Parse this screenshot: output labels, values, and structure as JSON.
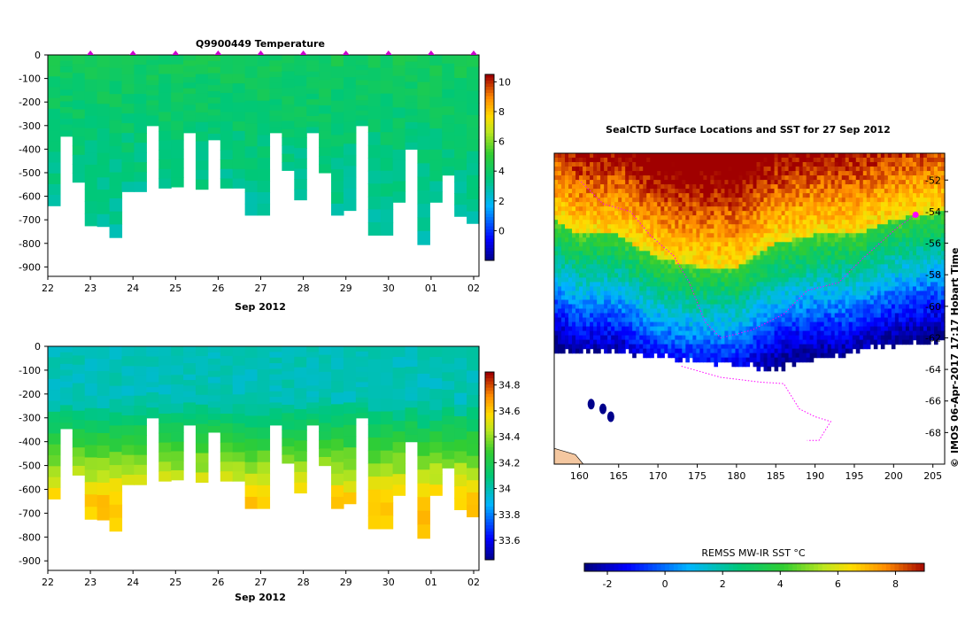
{
  "chart_data": [
    {
      "type": "heatmap",
      "title": "Q9900449  Temperature",
      "xlabel": "Sep 2012",
      "x_tick_labels": [
        "22",
        "23",
        "24",
        "25",
        "26",
        "27",
        "28",
        "29",
        "30",
        "01",
        "02"
      ],
      "ylabel": "",
      "y_tick_labels": [
        "0",
        "-100",
        "-200",
        "-300",
        "-400",
        "-500",
        "-600",
        "-700",
        "-800",
        "-900"
      ],
      "ylim": [
        -940,
        0
      ],
      "colorbar": {
        "ticks": [
          "10",
          "8",
          "6",
          "4",
          "2",
          "0"
        ],
        "range": [
          -2,
          10.5
        ]
      },
      "profile_max_depths_m": [
        -640,
        -345,
        -540,
        -725,
        -728,
        -775,
        -580,
        -580,
        -300,
        -565,
        -560,
        -330,
        -570,
        -360,
        -565,
        -565,
        -680,
        -680,
        -330,
        -490,
        -615,
        -330,
        -500,
        -680,
        -660,
        -300,
        -765,
        -765,
        -625,
        -400,
        -805,
        -625,
        -510,
        -685,
        -715
      ],
      "surface_value": 4.3,
      "deep_value": 3.1,
      "profile_markers_day": [
        23.0,
        24.0,
        25.0,
        26.0,
        27.0,
        28.0,
        29.0,
        30.0,
        31.0,
        32.0
      ]
    },
    {
      "type": "heatmap",
      "title": "",
      "xlabel": "Sep 2012",
      "x_tick_labels": [
        "22",
        "23",
        "24",
        "25",
        "26",
        "27",
        "28",
        "29",
        "30",
        "01",
        "02"
      ],
      "y_tick_labels": [
        "0",
        "-100",
        "-200",
        "-300",
        "-400",
        "-500",
        "-600",
        "-700",
        "-800",
        "-900"
      ],
      "ylim": [
        -940,
        0
      ],
      "colorbar": {
        "ticks": [
          "34.8",
          "34.6",
          "34.4",
          "34.2",
          "34",
          "33.8",
          "33.6"
        ],
        "range": [
          33.45,
          34.9
        ]
      },
      "profile_max_depths_m": [
        -640,
        -345,
        -540,
        -725,
        -728,
        -775,
        -580,
        -580,
        -300,
        -565,
        -560,
        -330,
        -570,
        -360,
        -565,
        -565,
        -680,
        -680,
        -330,
        -490,
        -615,
        -330,
        -500,
        -680,
        -660,
        -300,
        -765,
        -765,
        -625,
        -400,
        -805,
        -625,
        -510,
        -685,
        -715
      ],
      "surface_value": 34.0,
      "deep_value": 34.62
    },
    {
      "type": "heatmap",
      "title": "SealCTD Surface Locations and SST for 27 Sep 2012",
      "xlabel": "",
      "x_tick_labels": [
        "160",
        "165",
        "170",
        "175",
        "180",
        "185",
        "190",
        "195",
        "200",
        "205"
      ],
      "y_tick_labels": [
        "-52",
        "-54",
        "-56",
        "-58",
        "-60",
        "-62",
        "-64",
        "-66",
        "-68"
      ],
      "xlim": [
        156.8,
        206.5
      ],
      "ylim": [
        -70.0,
        -50.3
      ],
      "colorbar": {
        "label": "REMSS MW-IR SST °C",
        "ticks": [
          "-2",
          "0",
          "2",
          "4",
          "6",
          "8"
        ],
        "range": [
          -2.8,
          9.0
        ]
      },
      "sst_front_lat_by_lon": [
        [
          156.8,
          -54.5
        ],
        [
          160,
          -55.5
        ],
        [
          165,
          -55.5
        ],
        [
          170,
          -57.0
        ],
        [
          175,
          -57.5
        ],
        [
          180,
          -57.5
        ],
        [
          185,
          -56.0
        ],
        [
          190,
          -55.5
        ],
        [
          195,
          -55.5
        ],
        [
          200,
          -54.5
        ],
        [
          206.5,
          -54.0
        ]
      ],
      "ice_edge_lat_by_lon": [
        [
          156.8,
          -62.9
        ],
        [
          162,
          -62.8
        ],
        [
          170,
          -63.2
        ],
        [
          175,
          -63.5
        ],
        [
          180,
          -63.6
        ],
        [
          185,
          -64.0
        ],
        [
          190,
          -63.3
        ],
        [
          195,
          -62.8
        ],
        [
          200,
          -62.5
        ],
        [
          206.5,
          -62.2
        ]
      ],
      "track_lon_lat": [
        [
          202.8,
          -54.2
        ],
        [
          200.5,
          -55.0
        ],
        [
          196,
          -57.0
        ],
        [
          193,
          -58.5
        ],
        [
          189,
          -59.0
        ],
        [
          186,
          -60.5
        ],
        [
          182,
          -61.5
        ],
        [
          178,
          -62.0
        ],
        [
          176,
          -61.0
        ],
        [
          174,
          -58.5
        ],
        [
          172,
          -56.8
        ],
        [
          169,
          -55.5
        ],
        [
          166.5,
          -54.0
        ],
        [
          163,
          -53.5
        ],
        [
          160,
          -52.0
        ]
      ],
      "track_lon_lat_2": [
        [
          173,
          -63.8
        ],
        [
          178,
          -64.5
        ],
        [
          183,
          -64.8
        ],
        [
          186,
          -64.9
        ],
        [
          188,
          -66.5
        ],
        [
          190,
          -67.0
        ],
        [
          192,
          -67.3
        ],
        [
          190.5,
          -68.5
        ],
        [
          189,
          -68.5
        ]
      ]
    }
  ],
  "credit": "IMOS 06-Apr-2017 17:17 Hobart Time",
  "credit_symbol": "©"
}
